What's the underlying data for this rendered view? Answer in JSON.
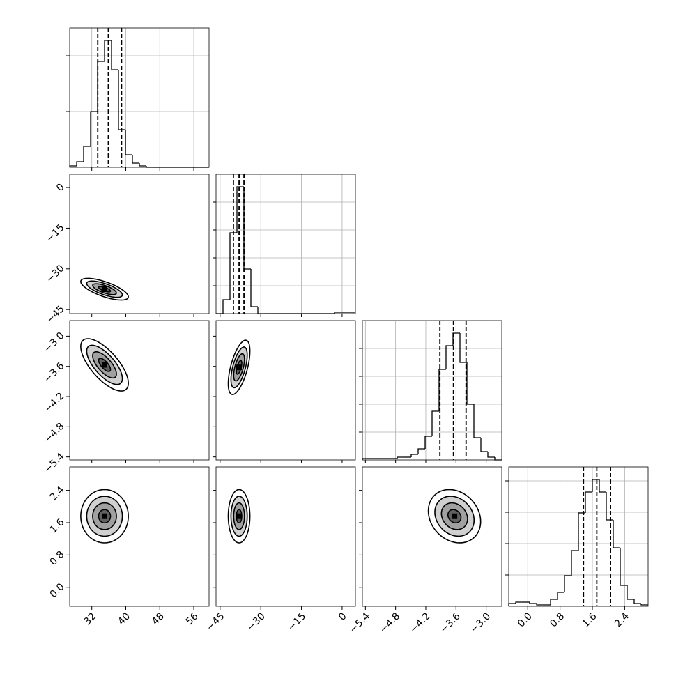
{
  "chart_data": {
    "type": "corner",
    "hist_color": "#000000",
    "grid_color": "#b0b0b0",
    "contour_fills": [
      "#ffffff",
      "#d0d0d0",
      "#a0a0a0",
      "#606060"
    ],
    "parameters": [
      {
        "lim": [
          26.8,
          59.6
        ],
        "ticks": [
          32,
          40,
          48,
          56
        ],
        "histogram": {
          "bins": [
            26.8,
            28.44,
            30.08,
            31.72,
            33.36,
            35.0,
            36.64,
            38.28,
            39.92,
            41.56,
            43.2,
            44.84,
            46.48,
            48.12,
            49.76,
            51.4,
            53.04,
            54.68,
            56.32,
            57.96,
            59.6
          ],
          "counts": [
            1,
            4,
            15,
            40,
            76,
            91,
            70,
            27,
            9,
            3,
            1,
            0,
            0,
            0,
            0,
            0,
            0,
            0,
            0,
            0
          ],
          "ylim": [
            0,
            100
          ],
          "yticks": [
            40,
            80
          ],
          "quantiles": [
            33.4,
            35.9,
            39.0
          ]
        }
      },
      {
        "lim": [
          -46.5,
          4.9
        ],
        "ticks": [
          {
            "value": -45,
            "label": "−45"
          },
          {
            "value": -30,
            "label": "−30"
          },
          {
            "value": -15,
            "label": "−15"
          },
          0
        ],
        "histogram": {
          "bins": [
            -46.5,
            -43.93,
            -41.36,
            -38.79,
            -36.22,
            -33.65,
            -31.08,
            -28.51,
            -25.94,
            -23.37,
            -20.8,
            -18.23,
            -15.66,
            -13.09,
            -10.52,
            -7.95,
            -5.38,
            -2.81,
            -0.24,
            2.33,
            4.9
          ],
          "counts": [
            0,
            10,
            58,
            91,
            32,
            5,
            0,
            0,
            0,
            0,
            0,
            0,
            0,
            0,
            0,
            0,
            0,
            1,
            1,
            1
          ],
          "ylim": [
            0,
            100
          ],
          "yticks": [
            20,
            40,
            60,
            80
          ],
          "quantiles": [
            -40.1,
            -38.0,
            -36.2
          ]
        }
      },
      {
        "lim": [
          -5.46,
          -2.69
        ],
        "ticks": [
          {
            "value": -5.4,
            "label": "−5.4"
          },
          {
            "value": -4.8,
            "label": "−4.8"
          },
          {
            "value": -4.2,
            "label": "−4.2"
          },
          {
            "value": -3.6,
            "label": "−3.6"
          },
          {
            "value": -3.0,
            "label": "−3.0"
          }
        ],
        "histogram": {
          "bins": [
            -5.46,
            -5.3215,
            -5.183,
            -5.0445,
            -4.906,
            -4.7675,
            -4.629,
            -4.4905,
            -4.352,
            -4.2135,
            -4.075,
            -3.9365,
            -3.798,
            -3.6595,
            -3.521,
            -3.3825,
            -3.244,
            -3.1055,
            -2.967,
            -2.8285,
            -2.69
          ],
          "counts": [
            1,
            1,
            1,
            1,
            1,
            2,
            2,
            4,
            8,
            17,
            35,
            65,
            82,
            91,
            70,
            40,
            16,
            6,
            2,
            0
          ],
          "ylim": [
            0,
            100
          ],
          "yticks": [
            20,
            40,
            60,
            80
          ],
          "quantiles": [
            -3.92,
            -3.65,
            -3.4
          ]
        }
      },
      {
        "lim": [
          -0.47,
          2.98
        ],
        "ticks": [
          {
            "value": 0,
            "label": "0.0"
          },
          0.8,
          1.6,
          2.4
        ],
        "histogram": {
          "bins": [
            -0.47,
            -0.2975,
            -0.125,
            0.0475,
            0.22,
            0.3925,
            0.565,
            0.7375,
            0.91,
            1.0825,
            1.255,
            1.4275,
            1.6,
            1.7725,
            1.945,
            2.1175,
            2.29,
            2.4625,
            2.635,
            2.8075,
            2.98
          ],
          "counts": [
            2,
            3,
            3,
            2,
            1,
            1,
            5,
            10,
            22,
            40,
            67,
            82,
            91,
            82,
            62,
            42,
            15,
            5,
            2,
            1
          ],
          "ylim": [
            0,
            100
          ],
          "yticks": [
            22.5,
            45,
            67.5,
            90
          ],
          "quantiles": [
            1.38,
            1.71,
            2.05
          ]
        }
      }
    ],
    "pairs": [
      {
        "center": [
          35,
          -37.5
        ],
        "sigma": [
          2.8,
          2.0
        ],
        "corr": -0.7,
        "levels": [
          2.0,
          1.5,
          1.0,
          0.5
        ]
      },
      {
        "center": [
          35,
          -3.57
        ],
        "sigma": [
          2.8,
          0.26
        ],
        "corr": -0.7,
        "levels": [
          2.0,
          1.5,
          1.0,
          0.5
        ]
      },
      {
        "center": [
          -38,
          -3.62
        ],
        "sigma": [
          2.0,
          0.27
        ],
        "corr": 0.6,
        "levels": [
          2.0,
          1.5,
          1.0,
          0.5
        ]
      },
      {
        "center": [
          35,
          1.76
        ],
        "sigma": [
          2.8,
          0.33
        ],
        "corr": 0,
        "levels": [
          2.0,
          1.5,
          1.0,
          0.5
        ]
      },
      {
        "center": [
          -38,
          1.76
        ],
        "sigma": [
          2.0,
          0.33
        ],
        "corr": 0,
        "levels": [
          2.0,
          1.5,
          1.0,
          0.5
        ]
      },
      {
        "center": [
          -3.63,
          1.76
        ],
        "sigma": [
          0.26,
          0.33
        ],
        "corr": -0.2,
        "levels": [
          2.0,
          1.5,
          1.0,
          0.5
        ]
      }
    ]
  }
}
